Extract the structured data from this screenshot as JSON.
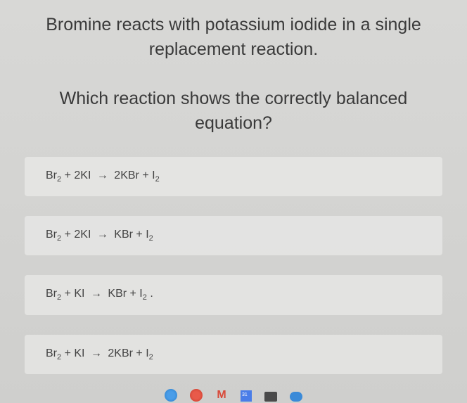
{
  "question": {
    "intro": "Bromine reacts with potassium iodide in a single replacement reaction.",
    "prompt": "Which reaction shows the correctly balanced equation?"
  },
  "options": [
    {
      "reactant1": "Br",
      "reactant1_sub": "2",
      "reactant2_coef": "2",
      "reactant2": "KI",
      "product1_coef": "2",
      "product1": "KBr",
      "product2": "I",
      "product2_sub": "2",
      "suffix": ""
    },
    {
      "reactant1": "Br",
      "reactant1_sub": "2",
      "reactant2_coef": "2",
      "reactant2": "KI",
      "product1_coef": "",
      "product1": "KBr",
      "product2": "I",
      "product2_sub": "2",
      "suffix": ""
    },
    {
      "reactant1": "Br",
      "reactant1_sub": "2",
      "reactant2_coef": "",
      "reactant2": "KI",
      "product1_coef": "",
      "product1": "KBr",
      "product2": "I",
      "product2_sub": "2",
      "suffix": " ."
    },
    {
      "reactant1": "Br",
      "reactant1_sub": "2",
      "reactant2_coef": "",
      "reactant2": "KI",
      "product1_coef": "2",
      "product1": "KBr",
      "product2": "I",
      "product2_sub": "2",
      "suffix": ""
    }
  ],
  "colors": {
    "background_top": "#d8d8d6",
    "background_bottom": "#cfcfcd",
    "option_bg": "rgba(238, 238, 236, 0.6)",
    "text": "#3a3a3a"
  }
}
